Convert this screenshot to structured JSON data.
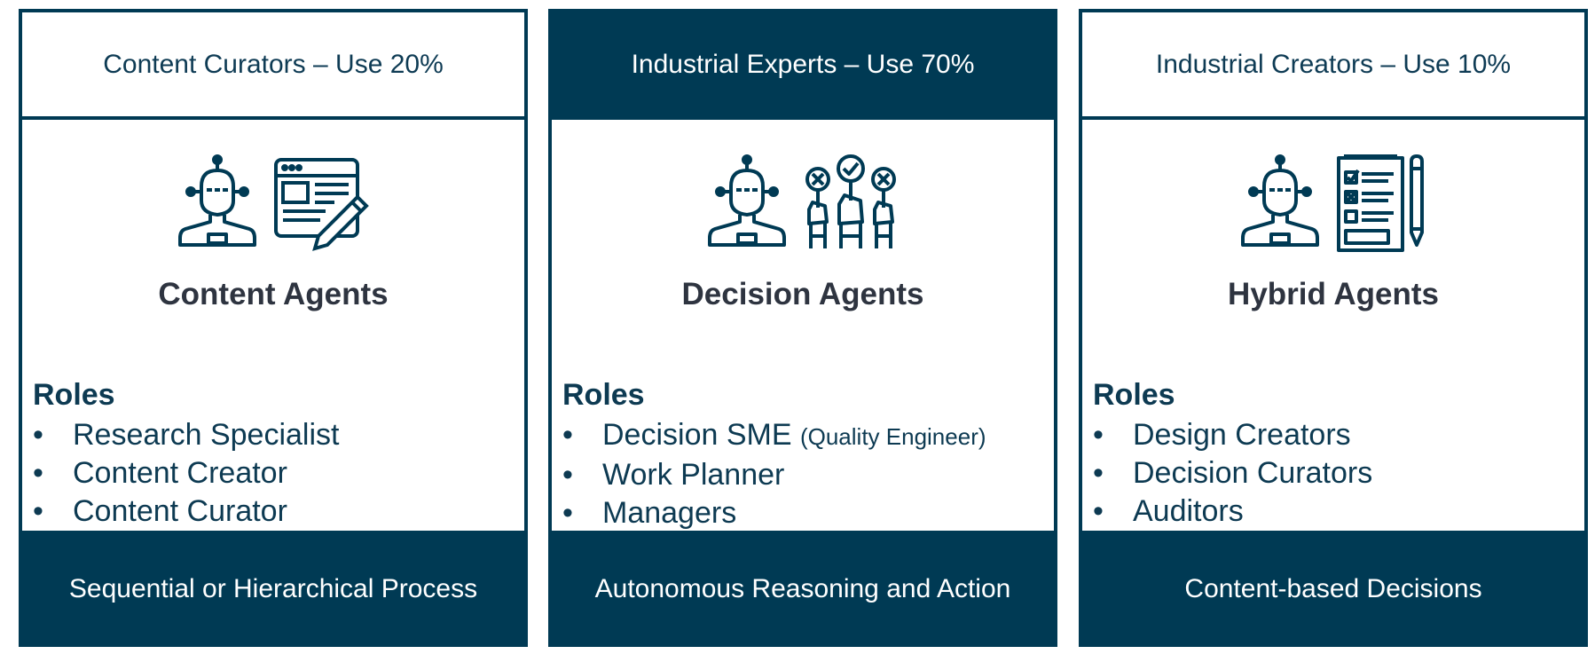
{
  "colors": {
    "navy": "#003a54",
    "text": "#0d3a52",
    "title": "#2e3440"
  },
  "cards": [
    {
      "header": "Content Curators – Use 20%",
      "header_style": "light",
      "icons": [
        "robot-head-icon",
        "document-edit-icon"
      ],
      "title": "Content Agents",
      "roles_title": "Roles",
      "roles": [
        {
          "label": "Research Specialist",
          "note": ""
        },
        {
          "label": "Content Creator",
          "note": ""
        },
        {
          "label": "Content Curator",
          "note": ""
        }
      ],
      "footer": "Sequential or Hierarchical Process"
    },
    {
      "header": "Industrial Experts – Use 70%",
      "header_style": "dark",
      "icons": [
        "robot-head-icon",
        "voting-hands-icon"
      ],
      "title": "Decision Agents",
      "roles_title": "Roles",
      "roles": [
        {
          "label": "Decision SME",
          "note": "(Quality Engineer)"
        },
        {
          "label": "Work Planner",
          "note": ""
        },
        {
          "label": "Managers",
          "note": ""
        }
      ],
      "footer": "Autonomous Reasoning and Action"
    },
    {
      "header": "Industrial Creators – Use 10%",
      "header_style": "light",
      "icons": [
        "robot-head-icon",
        "checklist-pencil-icon"
      ],
      "title": "Hybrid Agents",
      "roles_title": "Roles",
      "roles": [
        {
          "label": "Design Creators",
          "note": ""
        },
        {
          "label": "Decision Curators",
          "note": ""
        },
        {
          "label": "Auditors",
          "note": ""
        }
      ],
      "footer": "Content-based Decisions"
    }
  ],
  "bullet": "•"
}
